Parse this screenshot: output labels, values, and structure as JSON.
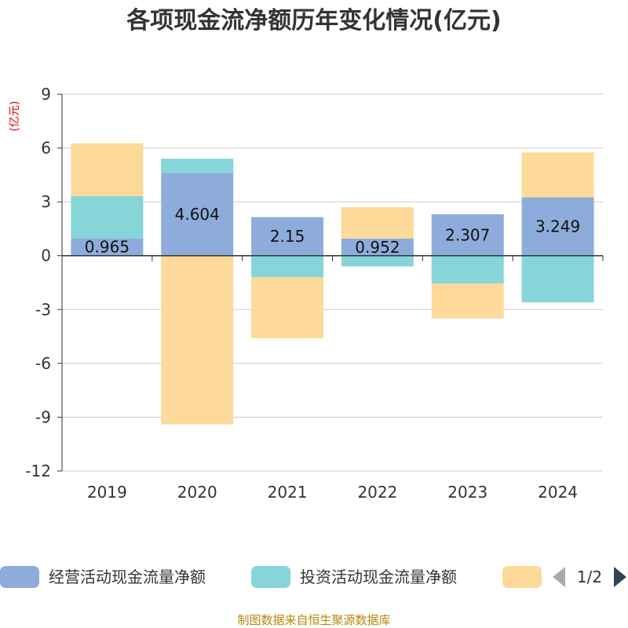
{
  "chart_data": {
    "type": "bar",
    "stacked": true,
    "title": "各项现金流净额历年变化情况(亿元)",
    "ylabel": "(亿元)",
    "xlabel": "",
    "ylim": [
      -12,
      9
    ],
    "yticks": [
      9,
      6,
      3,
      0,
      -3,
      -6,
      -9,
      -12
    ],
    "categories": [
      "2019",
      "2020",
      "2021",
      "2022",
      "2023",
      "2024"
    ],
    "series": [
      {
        "name": "经营活动现金流量净额",
        "color": "#8eacdb",
        "values": [
          0.965,
          4.604,
          2.15,
          0.952,
          2.307,
          3.249
        ],
        "labels": [
          "0.965",
          "4.604",
          "2.15",
          "0.952",
          "2.307",
          "3.249"
        ]
      },
      {
        "name": "投资活动现金流量净额",
        "color": "#86d5d8",
        "values": [
          2.35,
          0.8,
          -1.2,
          -0.6,
          -1.55,
          -2.6
        ]
      },
      {
        "name": "",
        "color": "#fdd99a",
        "values": [
          2.95,
          -9.4,
          -3.4,
          1.75,
          -1.95,
          2.5
        ]
      }
    ],
    "legend": {
      "placement": "bottom",
      "page_indicator": "1/2"
    }
  },
  "source": "制图数据来自恒生聚源数据库"
}
